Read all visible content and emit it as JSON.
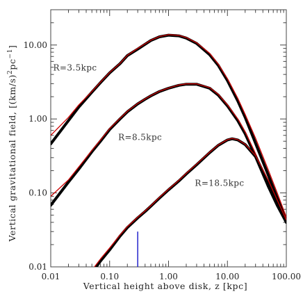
{
  "chart_data": {
    "type": "line",
    "title": "",
    "xlabel": "Vertical height above disk, z [kpc]",
    "ylabel_parts": [
      "Vertical gravitational field, [(km/s)",
      "2",
      "pc",
      "−1",
      "]"
    ],
    "x_scale": "log",
    "y_scale": "log",
    "xlim": [
      0.01,
      100
    ],
    "ylim": [
      0.01,
      30
    ],
    "x_ticks": [
      0.01,
      0.1,
      1,
      10,
      100
    ],
    "x_tick_labels": [
      "0.01",
      "0.10",
      "1.00",
      "10.00",
      "100.00"
    ],
    "y_ticks": [
      0.01,
      0.1,
      1,
      10
    ],
    "y_tick_labels": [
      "0.01",
      "0.10",
      "1.00",
      "10.00"
    ],
    "grid": false,
    "series": [
      {
        "name": "R=3.5kpc",
        "label_at": [
          0.011,
          4.5
        ],
        "x": [
          0.01,
          0.02,
          0.03,
          0.05,
          0.07,
          0.1,
          0.15,
          0.2,
          0.3,
          0.5,
          0.7,
          1.0,
          1.5,
          2.0,
          3.0,
          5.0,
          7.0,
          10.0,
          15.0,
          20.0,
          30.0,
          50.0,
          70.0,
          100.0
        ],
        "black": [
          0.46,
          0.95,
          1.45,
          2.3,
          3.1,
          4.2,
          5.6,
          7.2,
          8.8,
          11.5,
          12.9,
          13.6,
          13.3,
          12.4,
          10.5,
          7.4,
          5.3,
          3.3,
          1.75,
          1.05,
          0.47,
          0.17,
          0.085,
          0.042
        ],
        "red": [
          0.6,
          1.05,
          1.55,
          2.35,
          3.15,
          4.25,
          5.65,
          7.25,
          9.0,
          11.6,
          13.0,
          13.8,
          13.5,
          12.6,
          10.7,
          7.7,
          5.5,
          3.5,
          1.9,
          1.15,
          0.55,
          0.2,
          0.1,
          0.047
        ]
      },
      {
        "name": "R=8.5kpc",
        "label_at": [
          0.14,
          0.52
        ],
        "x": [
          0.01,
          0.02,
          0.03,
          0.05,
          0.07,
          0.1,
          0.15,
          0.2,
          0.3,
          0.4,
          0.5,
          0.7,
          1.0,
          1.5,
          2.0,
          3.0,
          5.0,
          7.0,
          10.0,
          15.0,
          20.0,
          30.0,
          50.0,
          70.0,
          100.0
        ],
        "black": [
          0.068,
          0.14,
          0.21,
          0.36,
          0.5,
          0.72,
          1.0,
          1.25,
          1.6,
          1.85,
          2.05,
          2.35,
          2.6,
          2.85,
          2.95,
          2.95,
          2.6,
          2.1,
          1.5,
          0.95,
          0.63,
          0.31,
          0.12,
          0.068,
          0.04
        ]
      },
      {
        "name": "R=18.5kpc",
        "label_at": [
          2.8,
          0.125
        ],
        "x": [
          0.05,
          0.07,
          0.1,
          0.15,
          0.2,
          0.3,
          0.4,
          0.5,
          0.7,
          1.0,
          1.5,
          2.0,
          3.0,
          5.0,
          7.0,
          10.0,
          12.0,
          15.0,
          20.0,
          30.0,
          50.0,
          70.0,
          100.0
        ],
        "black": [
          0.0083,
          0.012,
          0.017,
          0.026,
          0.034,
          0.046,
          0.056,
          0.066,
          0.085,
          0.11,
          0.145,
          0.18,
          0.24,
          0.35,
          0.44,
          0.52,
          0.54,
          0.52,
          0.45,
          0.31,
          0.135,
          0.075,
          0.04
        ],
        "red": [
          0.009,
          0.0128,
          0.018,
          0.027,
          0.035,
          0.047,
          0.057,
          0.067,
          0.087,
          0.112,
          0.148,
          0.184,
          0.245,
          0.355,
          0.445,
          0.525,
          0.545,
          0.525,
          0.455,
          0.32,
          0.145,
          0.08,
          0.043
        ]
      }
    ],
    "red_8p5": [
      0.09,
      0.15,
      0.225,
      0.375,
      0.52,
      0.74,
      1.02,
      1.27,
      1.62,
      1.87,
      2.07,
      2.37,
      2.62,
      2.88,
      2.98,
      2.98,
      2.65,
      2.15,
      1.55,
      1.0,
      0.67,
      0.34,
      0.135,
      0.075,
      0.044
    ],
    "marker_line": {
      "x": 0.3,
      "y": [
        0.01,
        0.03
      ]
    },
    "colors": {
      "model": "#000000",
      "fit": "#cc0000",
      "marker": "#2222cc",
      "frame": "#444444"
    }
  }
}
